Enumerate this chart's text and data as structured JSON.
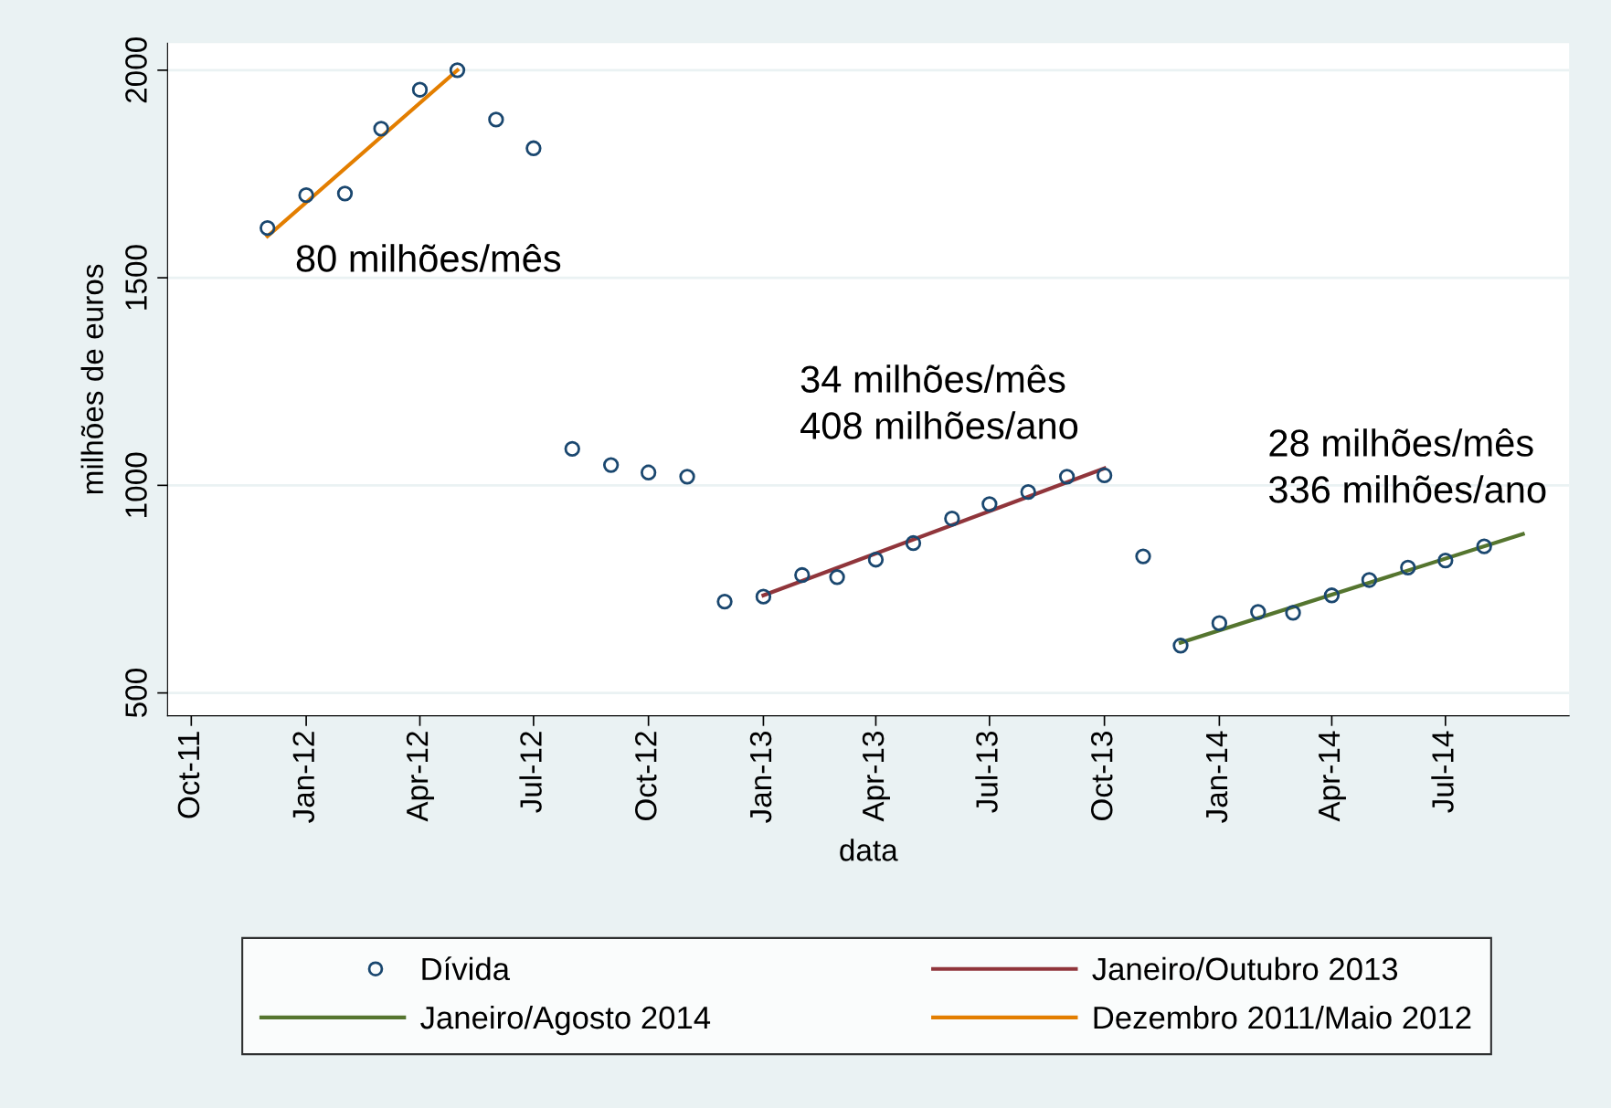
{
  "chart_data": {
    "type": "scatter",
    "xlabel": "data",
    "ylabel": "milhões de euros",
    "xlim": [
      "2011-09-12",
      "2014-10-08"
    ],
    "ylim": [
      445,
      2065
    ],
    "xticks": [
      {
        "value": "2011-10",
        "label": "Oct-11"
      },
      {
        "value": "2012-01",
        "label": "Jan-12"
      },
      {
        "value": "2012-04",
        "label": "Apr-12"
      },
      {
        "value": "2012-07",
        "label": "Jul-12"
      },
      {
        "value": "2012-10",
        "label": "Oct-12"
      },
      {
        "value": "2013-01",
        "label": "Jan-13"
      },
      {
        "value": "2013-04",
        "label": "Apr-13"
      },
      {
        "value": "2013-07",
        "label": "Jul-13"
      },
      {
        "value": "2013-10",
        "label": "Oct-13"
      },
      {
        "value": "2014-01",
        "label": "Jan-14"
      },
      {
        "value": "2014-04",
        "label": "Apr-14"
      },
      {
        "value": "2014-07",
        "label": "Jul-14"
      }
    ],
    "yticks": [
      500,
      1000,
      1500,
      2000
    ],
    "grid": "y",
    "legend": "bottom",
    "series": [
      {
        "name": "Dívida",
        "marker": "circle",
        "color": "#1a476f",
        "x": [
          "2011-12",
          "2012-01",
          "2012-02",
          "2012-03",
          "2012-04",
          "2012-05",
          "2012-06",
          "2012-07",
          "2012-08",
          "2012-09",
          "2012-10",
          "2012-11",
          "2012-12",
          "2013-01",
          "2013-02",
          "2013-03",
          "2013-04",
          "2013-05",
          "2013-06",
          "2013-07",
          "2013-08",
          "2013-09",
          "2013-10",
          "2013-11",
          "2013-12",
          "2014-01",
          "2014-02",
          "2014-03",
          "2014-04",
          "2014-05",
          "2014-06",
          "2014-07",
          "2014-08"
        ],
        "values": [
          1620,
          1699,
          1703,
          1859,
          1953,
          2000,
          1881,
          1812,
          1088,
          1049,
          1031,
          1021,
          720,
          732,
          784,
          779,
          821,
          861,
          920,
          955,
          984,
          1021,
          1024,
          829,
          614,
          668,
          695,
          693,
          735,
          772,
          802,
          819,
          853
        ]
      },
      {
        "name": "Janeiro/Agosto 2014",
        "type": "line",
        "color": "#55752f",
        "x": [
          "2013-12",
          "2014-09"
        ],
        "values": [
          621,
          883
        ]
      },
      {
        "name": "Janeiro/Outubro 2013",
        "type": "line",
        "color": "#90353b",
        "x": [
          "2013-01",
          "2013-10"
        ],
        "values": [
          735,
          1041
        ]
      },
      {
        "name": "Dezembro 2011/Maio 2012",
        "type": "line",
        "color": "#e37e00",
        "x": [
          "2011-12",
          "2012-05"
        ],
        "values": [
          1600,
          2000
        ]
      }
    ],
    "annotations": [
      "80 milhões/mês",
      "34 milhões/mês\n408 milhões/ano",
      "28 milhões/mês\n336 milhões/ano"
    ]
  }
}
